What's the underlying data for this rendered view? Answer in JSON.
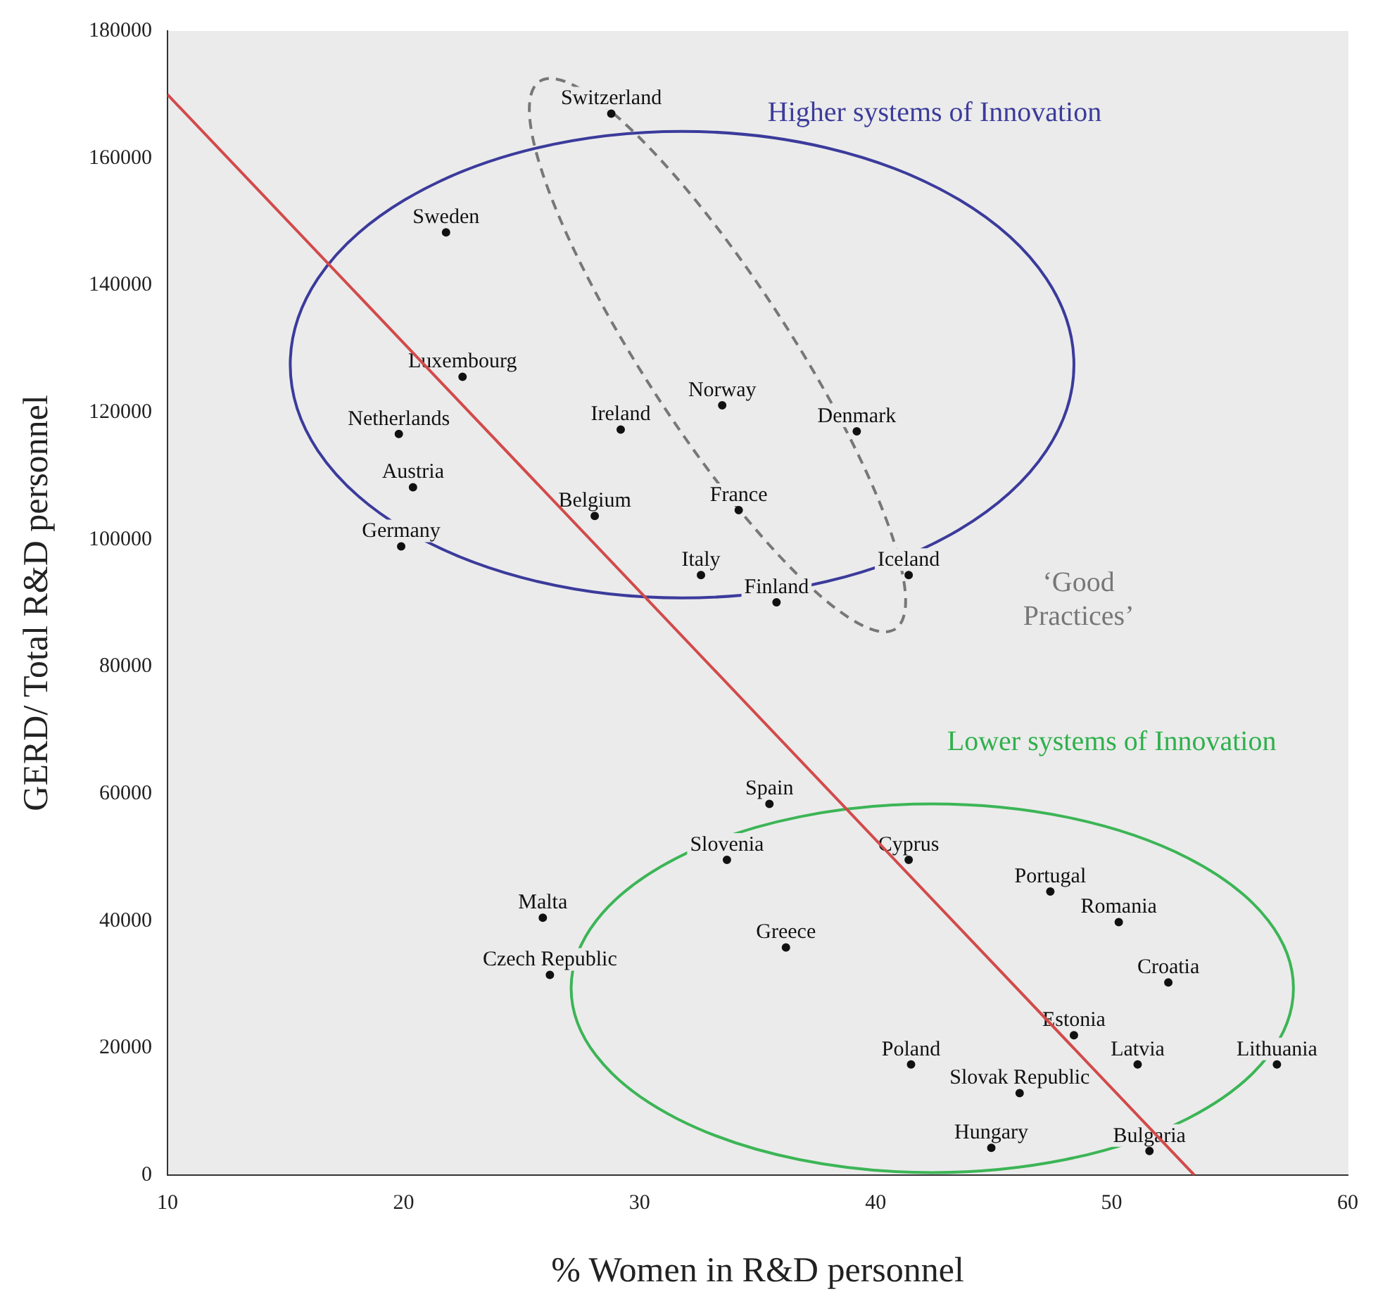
{
  "chart_data": {
    "type": "scatter",
    "xlabel": "% Women in R&D personnel",
    "ylabel": "GERD/ Total R&D personnel",
    "xlim": [
      10,
      60
    ],
    "xticks": [
      10,
      20,
      30,
      40,
      50,
      60
    ],
    "ylim": [
      0,
      180000
    ],
    "yticks": [
      0,
      20000,
      40000,
      60000,
      80000,
      100000,
      120000,
      140000,
      160000,
      180000
    ],
    "grid": false,
    "legend": false,
    "series": [
      {
        "type": "scatter",
        "color": "#111111",
        "marker": "circle",
        "x": [
          28.8,
          21.8,
          22.5,
          19.8,
          20.4,
          19.9,
          28.1,
          29.2,
          33.5,
          39.2,
          34.2,
          32.6,
          35.8,
          41.4,
          35.5,
          33.7,
          41.4,
          47.4,
          50.3,
          25.9,
          36.2,
          26.2,
          52.4,
          48.4,
          41.5,
          51.1,
          57.0,
          46.1,
          44.9,
          51.6
        ],
        "values": [
          167000,
          148300,
          125600,
          116600,
          108200,
          98900,
          103700,
          117300,
          121100,
          117000,
          104600,
          94400,
          90100,
          94400,
          58400,
          49600,
          49600,
          44600,
          39800,
          40500,
          35800,
          31500,
          30300,
          22000,
          17400,
          17400,
          17400,
          12900,
          4300,
          3800
        ],
        "value_labels": [
          "Switzerland",
          "Sweden",
          "Luxembourg",
          "Netherlands",
          "Austria",
          "Germany",
          "Belgium",
          "Ireland",
          "Norway",
          "Denmark",
          "France",
          "Italy",
          "Finland",
          "Iceland",
          "Spain",
          "Slovenia",
          "Cyprus",
          "Portugal",
          "Romania",
          "Malta",
          "Greece",
          "Czech Republic",
          "Croatia",
          "Estonia",
          "Poland",
          "Latvia",
          "Lithuania",
          "Slovak Republic",
          "Hungary",
          "Bulgaria"
        ]
      },
      {
        "type": "line",
        "color": "#d24a4a",
        "x": [
          10,
          53.5
        ],
        "values": [
          170000,
          0
        ]
      }
    ],
    "annotations": [
      "Higher systems of Innovation",
      "Lower systems of Innovation",
      "‘Good Practices’"
    ]
  }
}
